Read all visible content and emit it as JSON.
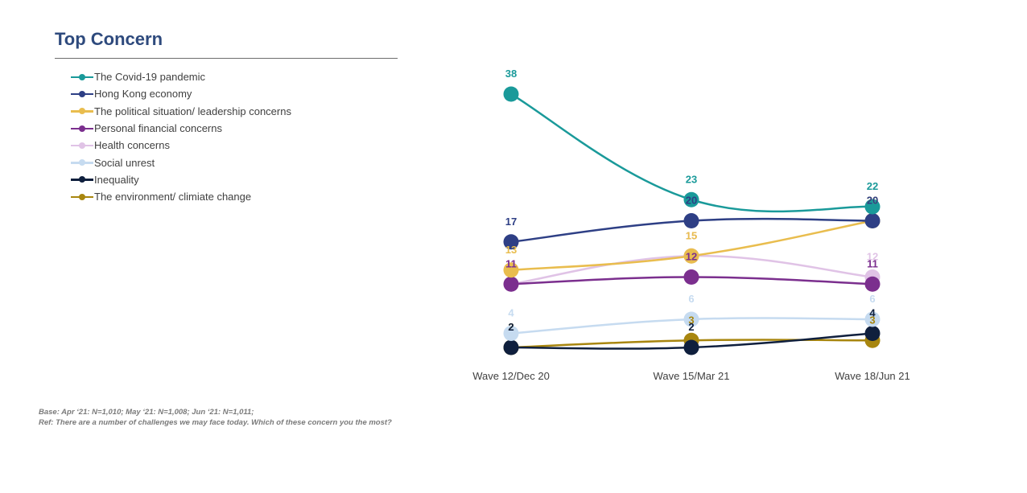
{
  "chart_data": {
    "type": "line",
    "title": "Top Concern",
    "xlabel": "",
    "ylabel": "",
    "ylim": [
      0,
      40
    ],
    "grid": false,
    "legend_placement": "top-left",
    "categories": [
      "Wave 12/Dec 20",
      "Wave 15/Mar 21",
      "Wave 18/Jun 21"
    ],
    "series": [
      {
        "name": "The Covid-19 pandemic",
        "color": "#1a9a9a",
        "values": [
          38,
          23,
          22
        ]
      },
      {
        "name": "Hong Kong economy",
        "color": "#2e3f85",
        "values": [
          17,
          20,
          20
        ]
      },
      {
        "name": "The political situation/ leadership concerns",
        "color": "#e9bd4e",
        "values": [
          13,
          15,
          20
        ]
      },
      {
        "name": "Personal financial concerns",
        "color": "#7b2f8e",
        "values": [
          11,
          12,
          11
        ]
      },
      {
        "name": "Health concerns",
        "color": "#e0c3e6",
        "values": [
          11,
          15,
          12
        ]
      },
      {
        "name": "Social unrest",
        "color": "#c6dbf0",
        "values": [
          4,
          6,
          6
        ]
      },
      {
        "name": "Inequality",
        "color": "#0f1f3d",
        "values": [
          2,
          2,
          4
        ]
      },
      {
        "name": "The environment/ climiate change",
        "color": "#a8860f",
        "values": [
          2,
          3,
          3
        ]
      }
    ],
    "data_labels": [
      [
        "38",
        "23",
        "22"
      ],
      [
        "17",
        "20",
        "20"
      ],
      [
        "13",
        "15",
        "20"
      ],
      [
        "11",
        "12",
        "11"
      ],
      [
        "11",
        "15",
        "12"
      ],
      [
        "4",
        "6",
        "6"
      ],
      [
        "2",
        "2",
        "4"
      ],
      [
        "2",
        "3",
        "3"
      ]
    ]
  },
  "footnotes": {
    "base": "Base: Apr ‘21: N=1,010; May ‘21: N=1,008; Jun ‘21: N=1,011;",
    "ref": "Ref:  There are a number of challenges we may face today.  Which of these concern you the most?"
  }
}
